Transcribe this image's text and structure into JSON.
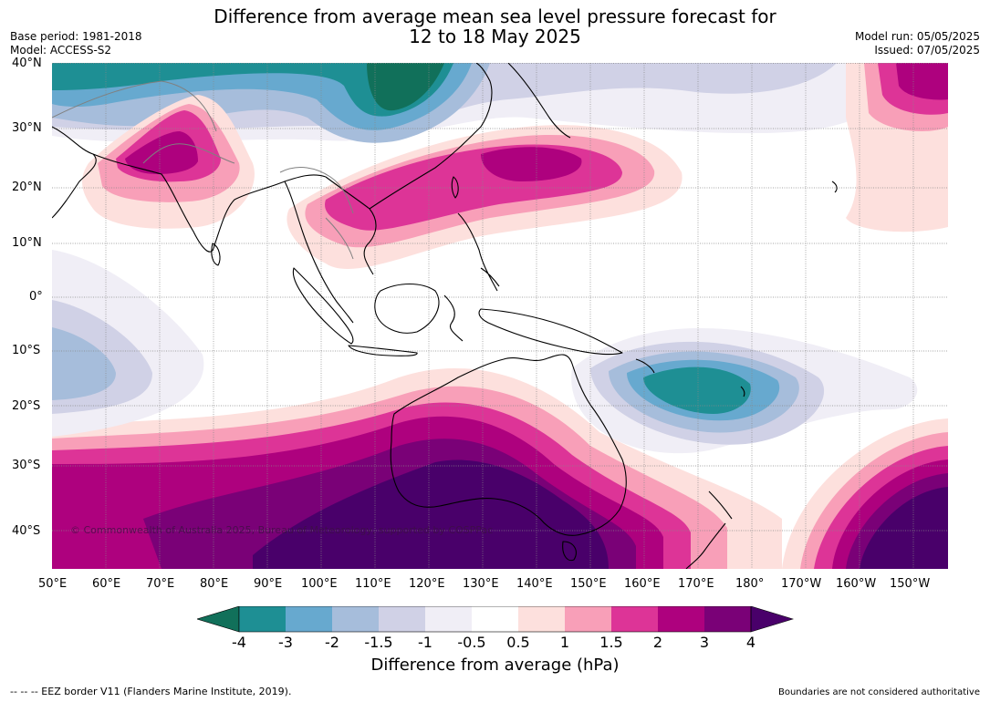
{
  "header": {
    "title_line1": "Difference from average mean sea level pressure forecast for",
    "title_line2": "12 to 18 May 2025",
    "base_period": "Base period: 1981-2018",
    "model": "Model: ACCESS-S2",
    "model_run": "Model run: 05/05/2025",
    "issued": "Issued: 07/05/2025"
  },
  "map": {
    "lat_labels": [
      "40°N",
      "30°N",
      "20°N",
      "10°N",
      "0°",
      "10°S",
      "20°S",
      "30°S",
      "40°S"
    ],
    "lon_labels": [
      "50°E",
      "60°E",
      "70°E",
      "80°E",
      "90°E",
      "100°E",
      "110°E",
      "120°E",
      "130°E",
      "140°E",
      "150°E",
      "160°E",
      "170°E",
      "180°",
      "170°W",
      "160°W",
      "150°W"
    ],
    "copyright": "© Commonwealth of Australia 2025, Bureau of Meteorology, supported by COSPPac"
  },
  "colorbar": {
    "labels": [
      "-4",
      "-3",
      "-2",
      "-1.5",
      "-1",
      "-0.5",
      "0.5",
      "1",
      "1.5",
      "2",
      "3",
      "4"
    ],
    "colors": [
      "#11705a",
      "#1e8f94",
      "#67a9cf",
      "#a6bddb",
      "#d0d1e6",
      "#f0eef6",
      "#ffffff",
      "#fde0dd",
      "#f89fb8",
      "#dd3497",
      "#ae017e",
      "#7a0177",
      "#49006a"
    ],
    "title": "Difference from average (hPa)"
  },
  "footer": {
    "eez": "--  --  -- EEZ border V11 (Flanders Marine Institute, 2019).",
    "disclaimer": "Boundaries are not considered authoritative"
  }
}
